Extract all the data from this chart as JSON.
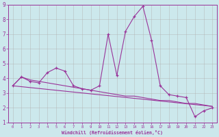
{
  "xlabel": "Windchill (Refroidissement éolien,°C)",
  "background_color": "#cce8ec",
  "grid_color": "#b0b0b0",
  "line_color": "#993399",
  "xlim": [
    -0.5,
    23.5
  ],
  "ylim": [
    1,
    9
  ],
  "xticks": [
    0,
    1,
    2,
    3,
    4,
    5,
    6,
    7,
    8,
    9,
    10,
    11,
    12,
    13,
    14,
    15,
    16,
    17,
    18,
    19,
    20,
    21,
    22,
    23
  ],
  "yticks": [
    1,
    2,
    3,
    4,
    5,
    6,
    7,
    8,
    9
  ],
  "series1_x": [
    0,
    1,
    2,
    3,
    4,
    5,
    6,
    7,
    8,
    9,
    10,
    11,
    12,
    13,
    14,
    15,
    16,
    17,
    18,
    19,
    20,
    21,
    22,
    23
  ],
  "series1_y": [
    3.5,
    4.1,
    3.8,
    3.7,
    4.4,
    4.7,
    4.5,
    3.5,
    3.3,
    3.2,
    3.5,
    7.0,
    4.2,
    7.2,
    8.2,
    8.9,
    6.6,
    3.5,
    2.9,
    2.8,
    2.7,
    1.4,
    1.8,
    2.0
  ],
  "series2_x": [
    0,
    1,
    2,
    3,
    4,
    5,
    6,
    7,
    8,
    9,
    10,
    11,
    12,
    13,
    14,
    15,
    16,
    17,
    18,
    19,
    20,
    21,
    22,
    23
  ],
  "series2_y": [
    3.5,
    4.1,
    3.9,
    3.8,
    3.7,
    3.6,
    3.5,
    3.4,
    3.3,
    3.2,
    3.1,
    3.0,
    2.9,
    2.8,
    2.8,
    2.7,
    2.6,
    2.5,
    2.5,
    2.4,
    2.3,
    2.3,
    2.2,
    2.1
  ],
  "series3_x": [
    0,
    23
  ],
  "series3_y": [
    3.5,
    2.1
  ]
}
